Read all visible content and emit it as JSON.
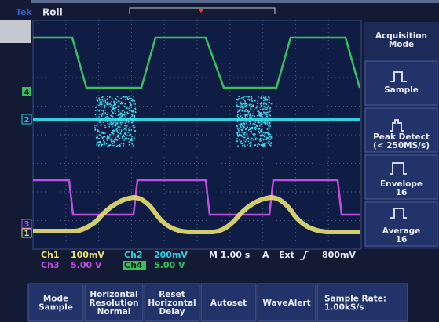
{
  "header": {
    "brand": "Tek",
    "mode": "Roll"
  },
  "side_menu": {
    "title": [
      "Acquisition",
      "Mode"
    ],
    "items": [
      [
        "Sample"
      ],
      [
        "Peak Detect",
        "(< 250MS/s)"
      ],
      [
        "Envelope",
        "16"
      ],
      [
        "Average",
        "16"
      ]
    ]
  },
  "channel_markers": [
    "4",
    "2",
    "3",
    "1"
  ],
  "readout": {
    "ch1": {
      "label": "Ch1",
      "scale": "100mV"
    },
    "ch2": {
      "label": "Ch2",
      "scale": "200mV"
    },
    "ch3": {
      "label": "Ch3",
      "scale": "5.00 V"
    },
    "ch4": {
      "label": "Ch4",
      "scale": "5.00 V"
    },
    "timebase": "M 1.00 s",
    "trigger_mode": "A",
    "trigger_source": "Ext",
    "trigger_level": "800mV"
  },
  "bottom_menu": [
    [
      "Mode",
      "Sample"
    ],
    [
      "Horizontal",
      "Resolution",
      "Normal"
    ],
    [
      "Reset",
      "Horizontal",
      "Delay"
    ],
    [
      "Autoset"
    ],
    [
      "WaveAlert"
    ],
    [
      "Sample Rate:",
      "1.00kS/s"
    ]
  ]
}
